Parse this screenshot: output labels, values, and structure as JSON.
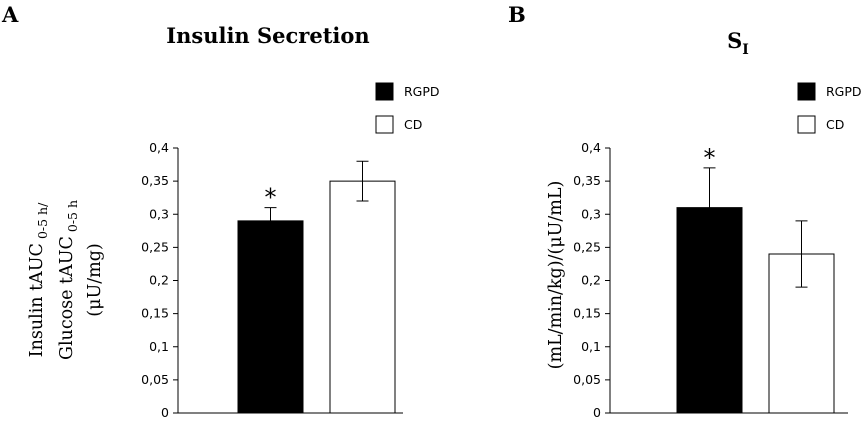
{
  "panels": [
    {
      "letter": "A"
    },
    {
      "letter": "B"
    }
  ],
  "chart_data": [
    {
      "type": "bar",
      "title": "Insulin Secretion",
      "title_sub": "",
      "ylabel_lines": [
        {
          "main": "Insulin tAUC",
          "sub": "0-5 h/"
        },
        {
          "main": "Glucose tAUC",
          "sub": "0-5 h"
        },
        {
          "main": "(μU/mg)",
          "sub": ""
        }
      ],
      "ylim": [
        0,
        0.4
      ],
      "yticks": [
        "0",
        "0,05",
        "0,1",
        "0,15",
        "0,2",
        "0,25",
        "0,3",
        "0,35",
        "0,4"
      ],
      "series": [
        {
          "name": "RGPD",
          "value": 0.29,
          "error": 0.02,
          "color": "#000000",
          "significant": true
        },
        {
          "name": "CD",
          "value": 0.35,
          "error": 0.03,
          "color": "#ffffff",
          "significant": false
        }
      ],
      "significance_marker": "*",
      "legend_placement": "top-right",
      "grid": false
    },
    {
      "type": "bar",
      "title": "S",
      "title_sub": "I",
      "ylabel_lines": [
        {
          "main": "(mL/min/kg)/(μU/mL)",
          "sub": ""
        }
      ],
      "ylim": [
        0,
        0.4
      ],
      "yticks": [
        "0",
        "0,05",
        "0,1",
        "0,15",
        "0,2",
        "0,25",
        "0,3",
        "0,35",
        "0,4"
      ],
      "series": [
        {
          "name": "RGPD",
          "value": 0.31,
          "error": 0.06,
          "color": "#000000",
          "significant": true
        },
        {
          "name": "CD",
          "value": 0.24,
          "error": 0.05,
          "color": "#ffffff",
          "significant": false
        }
      ],
      "significance_marker": "*",
      "legend_placement": "top-right",
      "grid": false
    }
  ]
}
